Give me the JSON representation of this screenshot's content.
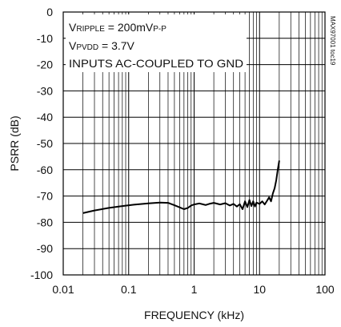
{
  "chart_data": {
    "type": "line",
    "xlabel": "FREQUENCY (kHz)",
    "ylabel": "PSRR (dB)",
    "xscale": "log",
    "xlim": [
      0.01,
      100
    ],
    "ylim": [
      -100,
      0
    ],
    "x_ticks": [
      "0.01",
      "0.1",
      "1",
      "10",
      "100"
    ],
    "y_ticks": [
      "0",
      "-10",
      "-20",
      "-30",
      "-40",
      "-50",
      "-60",
      "-70",
      "-80",
      "-90",
      "-100"
    ],
    "grid": true,
    "annotations": {
      "line1_main": "V",
      "line1_sub": "RIPPLE",
      "line1_value": " = 200mV",
      "line1_value_sub": "P-P",
      "line2_main": "V",
      "line2_sub": "PVDD",
      "line2_value": " = 3.7V",
      "line3": "INPUTS AC-COUPLED TO GND"
    },
    "side_note": "MAX97001 toc19",
    "series": [
      {
        "x": [
          0.02,
          0.03,
          0.05,
          0.08,
          0.12,
          0.2,
          0.3,
          0.4,
          0.5,
          0.6,
          0.7,
          0.8,
          0.9,
          1.0,
          1.2,
          1.5,
          1.7,
          2.0,
          2.5,
          3.0,
          3.5,
          4.0,
          4.5,
          5.0,
          5.5,
          6.0,
          6.5,
          7.0,
          7.5,
          8.0,
          8.5,
          9.0,
          10.0,
          11.0,
          12.0,
          13.0,
          14.0,
          15.0,
          16.0,
          17.0,
          18.0,
          19.0,
          20.0
        ],
        "y": [
          -76.5,
          -75.5,
          -74.5,
          -73.8,
          -73.3,
          -72.8,
          -72.5,
          -72.6,
          -73.5,
          -74.3,
          -75.0,
          -74.5,
          -73.6,
          -73.2,
          -72.8,
          -73.4,
          -73.0,
          -72.6,
          -73.2,
          -72.7,
          -73.6,
          -73.0,
          -74.0,
          -73.1,
          -75.0,
          -72.0,
          -74.2,
          -71.5,
          -73.8,
          -72.0,
          -74.0,
          -72.5,
          -73.0,
          -72.0,
          -73.2,
          -71.8,
          -70.5,
          -72.0,
          -69.0,
          -67.0,
          -64.0,
          -60.0,
          -56.5
        ]
      }
    ]
  }
}
